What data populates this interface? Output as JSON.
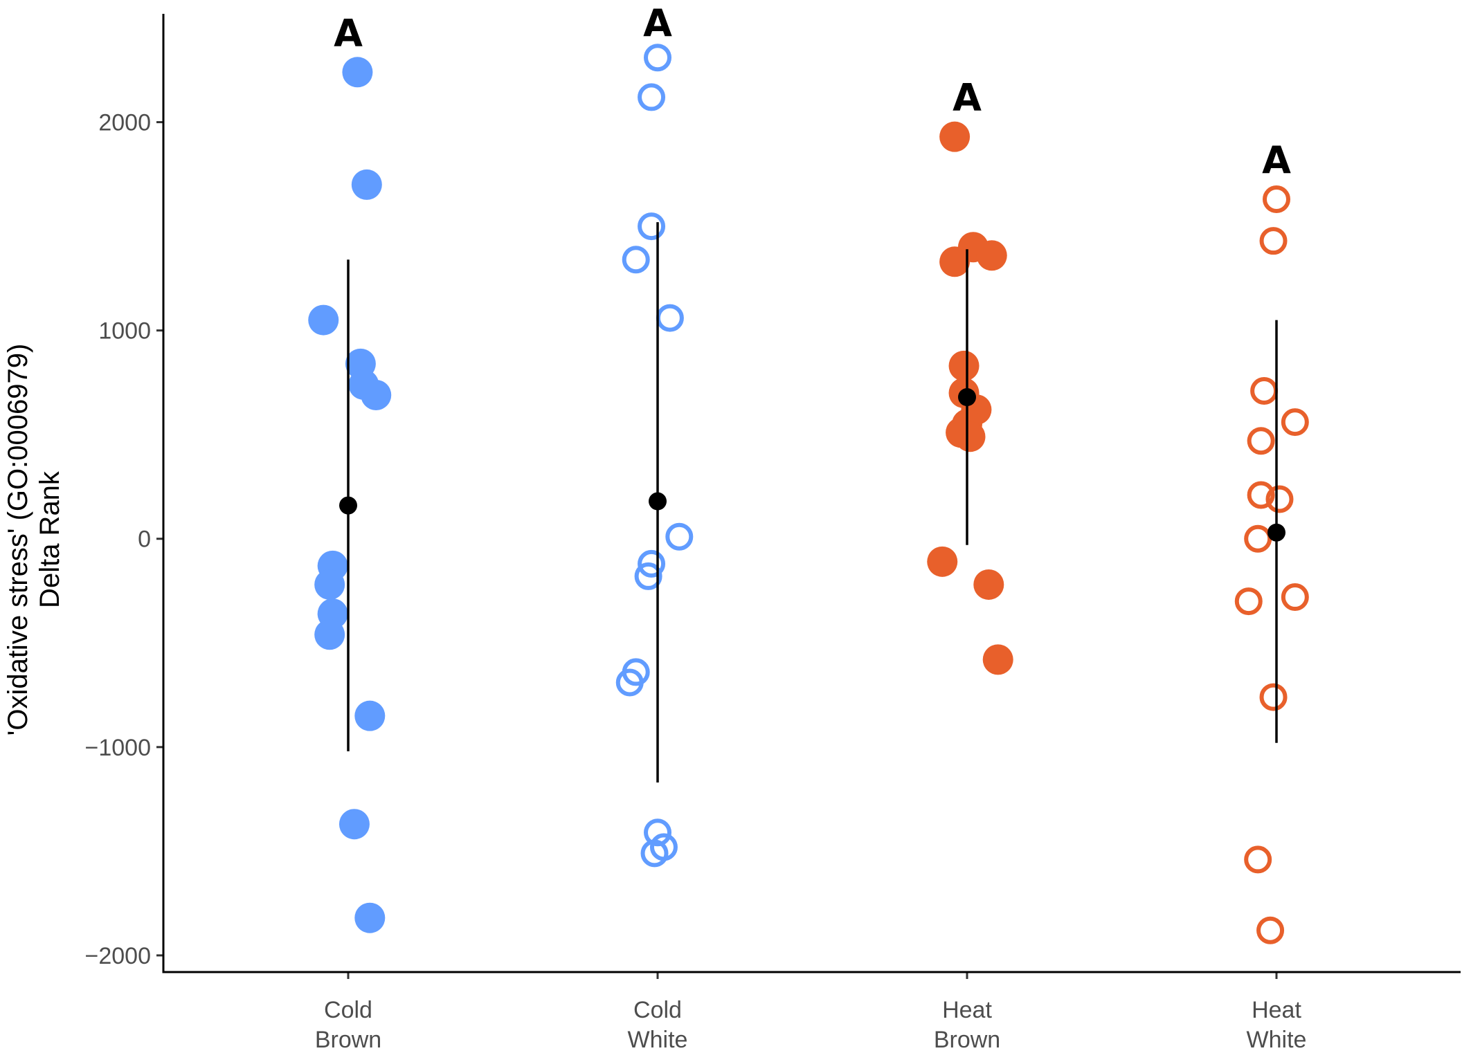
{
  "chart_data": {
    "type": "scatter",
    "ylabel_lines": [
      "'Oxidative stress' (GO:0006979)",
      "Delta Rank"
    ],
    "categories": [
      {
        "line1": "Cold",
        "line2": "Brown"
      },
      {
        "line1": "Cold",
        "line2": "White"
      },
      {
        "line1": "Heat",
        "line2": "Brown"
      },
      {
        "line1": "Heat",
        "line2": "White"
      }
    ],
    "ylim": [
      -2080,
      2520
    ],
    "yticks": [
      {
        "value": -2000,
        "label": "−2000"
      },
      {
        "value": -1000,
        "label": "−1000"
      },
      {
        "value": 0,
        "label": "0"
      },
      {
        "value": 1000,
        "label": "1000"
      },
      {
        "value": 2000,
        "label": "2000"
      }
    ],
    "grid": false,
    "series": [
      {
        "category_index": 0,
        "color": "#619CFF",
        "filled": true,
        "mean": 160,
        "lower": -1020,
        "upper": 1340,
        "significance": "A",
        "points": [
          {
            "jitter": 0.03,
            "y": 2240
          },
          {
            "jitter": 0.06,
            "y": 1700
          },
          {
            "jitter": -0.08,
            "y": 1050
          },
          {
            "jitter": 0.04,
            "y": 840
          },
          {
            "jitter": 0.05,
            "y": 740
          },
          {
            "jitter": 0.09,
            "y": 690
          },
          {
            "jitter": -0.05,
            "y": -130
          },
          {
            "jitter": -0.06,
            "y": -220
          },
          {
            "jitter": -0.05,
            "y": -360
          },
          {
            "jitter": -0.06,
            "y": -460
          },
          {
            "jitter": 0.07,
            "y": -850
          },
          {
            "jitter": 0.02,
            "y": -1370
          },
          {
            "jitter": 0.07,
            "y": -1820
          }
        ]
      },
      {
        "category_index": 1,
        "color": "#619CFF",
        "filled": false,
        "mean": 180,
        "lower": -1170,
        "upper": 1520,
        "significance": "A",
        "points": [
          {
            "jitter": 0.0,
            "y": 2310
          },
          {
            "jitter": -0.02,
            "y": 2120
          },
          {
            "jitter": -0.02,
            "y": 1500
          },
          {
            "jitter": -0.07,
            "y": 1340
          },
          {
            "jitter": 0.04,
            "y": 1060
          },
          {
            "jitter": 0.07,
            "y": 10
          },
          {
            "jitter": -0.02,
            "y": -120
          },
          {
            "jitter": -0.03,
            "y": -180
          },
          {
            "jitter": -0.07,
            "y": -640
          },
          {
            "jitter": -0.09,
            "y": -690
          },
          {
            "jitter": 0.0,
            "y": -1410
          },
          {
            "jitter": 0.02,
            "y": -1480
          },
          {
            "jitter": -0.01,
            "y": -1510
          }
        ]
      },
      {
        "category_index": 2,
        "color": "#E8602B",
        "filled": true,
        "mean": 680,
        "lower": -30,
        "upper": 1390,
        "significance": "A",
        "points": [
          {
            "jitter": -0.04,
            "y": 1930
          },
          {
            "jitter": 0.02,
            "y": 1400
          },
          {
            "jitter": 0.08,
            "y": 1360
          },
          {
            "jitter": -0.04,
            "y": 1330
          },
          {
            "jitter": -0.01,
            "y": 830
          },
          {
            "jitter": -0.01,
            "y": 700
          },
          {
            "jitter": 0.03,
            "y": 620
          },
          {
            "jitter": 0.0,
            "y": 550
          },
          {
            "jitter": -0.02,
            "y": 510
          },
          {
            "jitter": 0.01,
            "y": 490
          },
          {
            "jitter": -0.08,
            "y": -110
          },
          {
            "jitter": 0.07,
            "y": -220
          },
          {
            "jitter": 0.1,
            "y": -580
          }
        ]
      },
      {
        "category_index": 3,
        "color": "#E8602B",
        "filled": false,
        "mean": 30,
        "lower": -980,
        "upper": 1050,
        "significance": "A",
        "points": [
          {
            "jitter": 0.0,
            "y": 1630
          },
          {
            "jitter": -0.01,
            "y": 1430
          },
          {
            "jitter": -0.04,
            "y": 710
          },
          {
            "jitter": 0.06,
            "y": 560
          },
          {
            "jitter": -0.05,
            "y": 470
          },
          {
            "jitter": -0.05,
            "y": 210
          },
          {
            "jitter": 0.01,
            "y": 190
          },
          {
            "jitter": -0.06,
            "y": 0
          },
          {
            "jitter": -0.09,
            "y": -300
          },
          {
            "jitter": 0.06,
            "y": -280
          },
          {
            "jitter": -0.01,
            "y": -760
          },
          {
            "jitter": -0.06,
            "y": -1540
          },
          {
            "jitter": -0.02,
            "y": -1880
          }
        ]
      }
    ]
  }
}
